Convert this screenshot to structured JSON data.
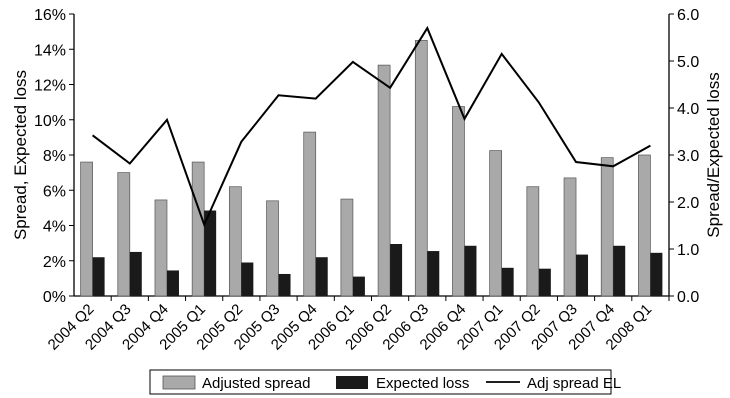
{
  "chart_data": {
    "type": "bar",
    "categories": [
      "2004 Q2",
      "2004 Q3",
      "2004 Q4",
      "2005 Q1",
      "2005 Q2",
      "2005 Q3",
      "2005 Q4",
      "2006 Q1",
      "2006 Q2",
      "2006 Q3",
      "2006 Q4",
      "2007 Q1",
      "2007 Q2",
      "2007 Q3",
      "2007 Q4",
      "2008 Q1"
    ],
    "ylabel_left": "Spread, Expected loss",
    "ylabel_right": "Spread/Expected loss",
    "ylim_left": [
      0,
      16
    ],
    "ylim_right": [
      0,
      6
    ],
    "yticks_left": [
      "0%",
      "2%",
      "4%",
      "6%",
      "8%",
      "10%",
      "12%",
      "14%",
      "16%"
    ],
    "yticks_right": [
      "0.0",
      "1.0",
      "2.0",
      "3.0",
      "4.0",
      "5.0",
      "6.0"
    ],
    "legend_position": "bottom",
    "grid": false,
    "series": [
      {
        "name": "Adjusted spread",
        "kind": "bar",
        "axis": "left",
        "color": "#a9a9a9",
        "values": [
          7.6,
          7.0,
          5.45,
          7.6,
          6.2,
          5.4,
          9.3,
          5.5,
          13.1,
          14.5,
          10.75,
          8.25,
          6.2,
          6.7,
          7.85,
          8.0
        ]
      },
      {
        "name": "Expected loss",
        "kind": "bar",
        "axis": "left",
        "color": "#1a1a1a",
        "values": [
          2.2,
          2.5,
          1.45,
          4.85,
          1.9,
          1.25,
          2.2,
          1.1,
          2.95,
          2.55,
          2.85,
          1.6,
          1.55,
          2.35,
          2.85,
          2.45
        ]
      },
      {
        "name": "Adj spread EL",
        "kind": "line",
        "axis": "right",
        "color": "#000000",
        "values": [
          3.42,
          2.82,
          3.75,
          1.52,
          3.28,
          4.27,
          4.2,
          4.98,
          4.43,
          5.7,
          3.77,
          5.15,
          4.12,
          2.85,
          2.76,
          3.2
        ]
      }
    ]
  }
}
